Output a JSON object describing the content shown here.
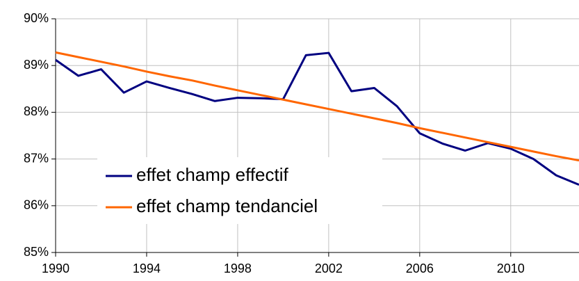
{
  "chart_data": {
    "type": "line",
    "x": [
      1990,
      1991,
      1992,
      1993,
      1994,
      1995,
      1996,
      1997,
      1998,
      1999,
      2000,
      2001,
      2002,
      2003,
      2004,
      2005,
      2006,
      2007,
      2008,
      2009,
      2010,
      2011,
      2012,
      2013
    ],
    "series": [
      {
        "name": "effet champ effectif",
        "color": "#000080",
        "values": [
          89.12,
          88.78,
          88.92,
          88.42,
          88.66,
          88.52,
          88.39,
          88.24,
          88.31,
          88.3,
          88.28,
          89.22,
          89.27,
          88.45,
          88.52,
          88.13,
          87.55,
          87.33,
          87.18,
          87.34,
          87.22,
          87.0,
          86.65,
          86.45
        ]
      },
      {
        "name": "effet champ tendanciel",
        "color": "#ff6600",
        "values": [
          89.28,
          89.18,
          89.08,
          88.98,
          88.87,
          88.77,
          88.68,
          88.57,
          88.47,
          88.37,
          88.27,
          88.17,
          88.07,
          87.97,
          87.87,
          87.77,
          87.66,
          87.56,
          87.46,
          87.36,
          87.26,
          87.16,
          87.06,
          86.97
        ]
      }
    ],
    "xlim": [
      1990,
      2013
    ],
    "xticks": [
      1990,
      1994,
      1998,
      2002,
      2006,
      2010
    ],
    "ylim": [
      85,
      90
    ],
    "yticks": [
      {
        "value": 85,
        "label": "85%"
      },
      {
        "value": 86,
        "label": "86%"
      },
      {
        "value": 87,
        "label": "87%"
      },
      {
        "value": 88,
        "label": "88%"
      },
      {
        "value": 89,
        "label": "89%"
      },
      {
        "value": 90,
        "label": "90%"
      }
    ],
    "grid": true
  }
}
